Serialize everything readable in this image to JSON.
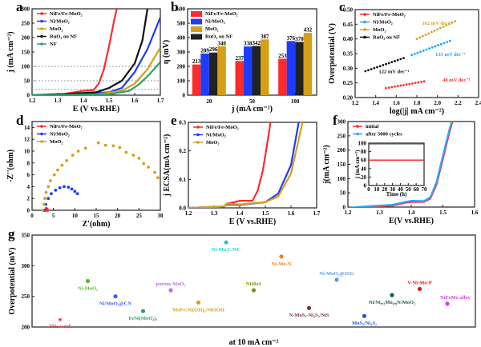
{
  "chart_data": [
    {
      "panel_label": "a",
      "type": "line",
      "xlabel": "E (V vs.RHE)",
      "ylabel": "j (mA cm⁻²)",
      "xlim": [
        1.2,
        1.7
      ],
      "ylim": [
        0,
        300
      ],
      "xticks": [
        "1.2",
        "1.3",
        "1.4",
        "1.5",
        "1.6",
        "1.7"
      ],
      "yticks": [
        "0",
        "50",
        "100",
        "150",
        "200",
        "250",
        "300"
      ],
      "ref_lines": [
        20,
        50,
        100
      ],
      "series": [
        {
          "name": "NiFe/Fe-MoO₂",
          "color": "#ff2a2a",
          "x": [
            1.2,
            1.3,
            1.35,
            1.4,
            1.44,
            1.46,
            1.48,
            1.5,
            1.52,
            1.53
          ],
          "y": [
            -5,
            0,
            8,
            15,
            18,
            40,
            90,
            170,
            260,
            300
          ]
        },
        {
          "name": "Ni/MoO₂",
          "color": "#1e3cff",
          "x": [
            1.2,
            1.4,
            1.5,
            1.55,
            1.6,
            1.65,
            1.7
          ],
          "y": [
            0,
            5,
            10,
            25,
            80,
            160,
            270
          ]
        },
        {
          "name": "MoO₂",
          "color": "#d4a017",
          "x": [
            1.2,
            1.45,
            1.55,
            1.6,
            1.65,
            1.7
          ],
          "y": [
            0,
            3,
            15,
            40,
            90,
            165
          ]
        },
        {
          "name": "RuO₂ on NF",
          "color": "#111111",
          "x": [
            1.2,
            1.35,
            1.45,
            1.5,
            1.55,
            1.6,
            1.63,
            1.65
          ],
          "y": [
            0,
            5,
            10,
            25,
            50,
            110,
            190,
            300
          ]
        },
        {
          "name": "NF",
          "color": "#2aa36b",
          "x": [
            1.2,
            1.5,
            1.58,
            1.62,
            1.66,
            1.7
          ],
          "y": [
            0,
            3,
            15,
            40,
            75,
            115
          ]
        }
      ]
    },
    {
      "panel_label": "b",
      "type": "bar",
      "xlabel": "j (mA cm⁻²)",
      "ylabel": "η (mV)",
      "ylim": [
        0,
        600
      ],
      "yticks": [
        "0",
        "100",
        "200",
        "300",
        "400",
        "500",
        "600"
      ],
      "categories": [
        "20",
        "50",
        "100"
      ],
      "series": [
        {
          "name": "NiFe/Fe-MoO₂",
          "color": "#ff2a2a",
          "values": [
            "213",
            "237",
            "253"
          ]
        },
        {
          "name": "Ni/MoO₂",
          "color": "#1e3cff",
          "values": [
            "289",
            "338",
            "376"
          ]
        },
        {
          "name": "RuO₂ on NF",
          "color": "#222222",
          "values": [
            "296",
            "342",
            "370"
          ]
        },
        {
          "name": "MoO₂",
          "color": "#d4a017",
          "values": [
            "340",
            "387",
            "432"
          ]
        }
      ],
      "legend_order": [
        0,
        1,
        3,
        2
      ]
    },
    {
      "panel_label": "c",
      "type": "scatter",
      "xlabel": "log(|j| mA cm⁻²)",
      "ylabel": "Overpotential (V)",
      "xlim": [
        1.2,
        2.4
      ],
      "ylim": [
        0.2,
        0.5
      ],
      "xticks": [
        "1.2",
        "1.4",
        "1.6",
        "1.8",
        "2.0",
        "2.2",
        "2.4"
      ],
      "yticks": [
        "0.20",
        "0.25",
        "0.30",
        "0.35",
        "0.40",
        "0.45",
        "0.50"
      ],
      "series": [
        {
          "name": "NiFe/Fe-MoO₂",
          "color": "#ff2a2a",
          "x": [
            1.5,
            1.9
          ],
          "y": [
            0.232,
            0.257
          ],
          "slope": "48 mV dec⁻¹",
          "slope_at": [
            2.05,
            0.255
          ]
        },
        {
          "name": "Ni/MoO₂",
          "color": "#1aa3ff",
          "x": [
            1.75,
            2.15
          ],
          "y": [
            0.345,
            0.397
          ],
          "slope": "135 mV dec⁻¹",
          "slope_at": [
            1.98,
            0.342
          ]
        },
        {
          "name": "MoO₂",
          "color": "#d4a017",
          "x": [
            1.8,
            2.2
          ],
          "y": [
            0.4,
            0.465
          ],
          "slope": "162 mV dec⁻¹",
          "slope_at": [
            1.85,
            0.448
          ]
        },
        {
          "name": "RuO₂ on NF",
          "color": "#111111",
          "x": [
            1.3,
            1.7
          ],
          "y": [
            0.29,
            0.338
          ],
          "slope": "122 mV dec⁻¹",
          "slope_at": [
            1.43,
            0.283
          ]
        }
      ]
    },
    {
      "panel_label": "d",
      "type": "scatter",
      "xlabel": "Z'(ohm)",
      "ylabel": "-Z''(ohm)",
      "xlim": [
        0,
        30
      ],
      "ylim": [
        0,
        15
      ],
      "xticks": [
        "0",
        "5",
        "10",
        "15",
        "20",
        "25",
        "30"
      ],
      "yticks": [
        "0",
        "2",
        "4",
        "6",
        "8",
        "10",
        "12",
        "14"
      ],
      "series": [
        {
          "name": "NiFe/Fe-MoO₂",
          "color": "#ff2a2a",
          "x": [
            3.1,
            3.3,
            3.5,
            3.6
          ],
          "y": [
            0,
            0.3,
            0.2,
            0
          ]
        },
        {
          "name": "Ni/MoO₂",
          "color": "#1e3cff",
          "x": [
            2.8,
            3.2,
            3.8,
            4.5,
            5.5,
            6.5,
            7.5,
            8.5,
            9.3,
            10,
            10.6
          ],
          "y": [
            0,
            1,
            2,
            2.8,
            3.4,
            3.8,
            4,
            3.9,
            3.6,
            3.2,
            2.8
          ]
        },
        {
          "name": "MoO₂",
          "color": "#d4a017",
          "x": [
            2.5,
            2.8,
            3.0,
            3.3,
            3.8,
            4.3,
            5.2,
            6,
            7,
            8.1,
            9.5,
            10.8,
            12.5,
            15.5,
            17.2,
            19,
            20.5,
            22,
            23.7,
            25,
            26.1,
            27.2,
            28.7,
            29.4
          ],
          "y": [
            0,
            1,
            2,
            3,
            4,
            5,
            6,
            6.8,
            7.6,
            8.4,
            9.3,
            10,
            10.5,
            11.4,
            11,
            10.9,
            10.6,
            9.8,
            9.3,
            8.8,
            7.9,
            7.3,
            6.4,
            5.5
          ]
        }
      ]
    },
    {
      "panel_label": "e",
      "type": "line",
      "xlabel": "E (V vs.RHE)",
      "ylabel": "j ECSA(mA cm⁻²)",
      "xlim": [
        1.2,
        1.7
      ],
      "ylim": [
        0,
        0.3
      ],
      "xticks": [
        "1.2",
        "1.3",
        "1.4",
        "1.5",
        "1.6",
        "1.7"
      ],
      "yticks": [
        "0.0",
        "0.1",
        "0.2",
        "0.3"
      ],
      "series": [
        {
          "name": "NiFe/Fe-MoO₂",
          "color": "#ff2a2a",
          "x": [
            1.2,
            1.34,
            1.35,
            1.38,
            1.4,
            1.45,
            1.47,
            1.49,
            1.51,
            1.52
          ],
          "y": [
            -0.005,
            0.005,
            0.015,
            0.02,
            0.025,
            0.025,
            0.06,
            0.13,
            0.24,
            0.3
          ]
        },
        {
          "name": "Ni/MoO₂",
          "color": "#1e3cff",
          "x": [
            1.2,
            1.34,
            1.35,
            1.4,
            1.5,
            1.55,
            1.6,
            1.63
          ],
          "y": [
            0,
            0.005,
            0.012,
            0.01,
            0.02,
            0.05,
            0.15,
            0.3
          ]
        },
        {
          "name": "MoO₂",
          "color": "#d4a017",
          "x": [
            1.2,
            1.34,
            1.35,
            1.4,
            1.5,
            1.55,
            1.6,
            1.645
          ],
          "y": [
            0,
            0.005,
            0.015,
            0.012,
            0.02,
            0.04,
            0.12,
            0.3
          ]
        }
      ]
    },
    {
      "panel_label": "f",
      "type": "line",
      "xlabel": "E(V vs.RHE)",
      "ylabel": "j(mA cm⁻²)",
      "xlim": [
        1.2,
        1.6
      ],
      "ylim": [
        0,
        300
      ],
      "xticks": [
        "1.2",
        "1.3",
        "1.4",
        "1.5",
        "1.6"
      ],
      "yticks": [
        "0",
        "50",
        "100",
        "150",
        "200",
        "250",
        "300"
      ],
      "series": [
        {
          "name": "initial",
          "color": "#ff2a2a",
          "x": [
            1.2,
            1.25,
            1.34,
            1.38,
            1.4,
            1.44,
            1.46,
            1.48,
            1.5,
            1.52,
            1.53
          ],
          "y": [
            -5,
            0,
            5,
            15,
            18,
            18,
            30,
            80,
            170,
            260,
            300
          ]
        },
        {
          "name": "after 5000 cycles",
          "color": "#2aa7ff",
          "x": [
            1.2,
            1.25,
            1.34,
            1.38,
            1.4,
            1.44,
            1.46,
            1.48,
            1.5,
            1.52,
            1.528
          ],
          "y": [
            -3,
            2,
            8,
            18,
            22,
            21,
            34,
            88,
            180,
            270,
            300
          ]
        }
      ],
      "inset": {
        "xlabel": "Time (h)",
        "ylabel": "j (mA cm⁻²)",
        "xlim": [
          0,
          70
        ],
        "ylim": [
          0,
          100
        ],
        "xticks": [
          "0",
          "10",
          "20",
          "30",
          "40",
          "50",
          "60",
          "70"
        ],
        "yticks": [
          "0",
          "20",
          "40",
          "60",
          "80",
          "100"
        ],
        "x": [
          0,
          70
        ],
        "y": [
          60,
          60
        ],
        "color": "#ff2a2a"
      }
    },
    {
      "panel_label": "g",
      "type": "scatter",
      "xlabel": "at 10 mA cm⁻²",
      "ylabel": "Overpotential (mV)",
      "ylim": [
        200,
        350
      ],
      "yticks": [
        "200",
        "250",
        "300",
        "350"
      ],
      "points": [
        {
          "label": "This work",
          "value": 213,
          "color": "#ff3344",
          "marker": "star"
        },
        {
          "label": "Ni-MoO₂",
          "value": 275,
          "color": "#5ab82a"
        },
        {
          "label": "Ni/MoO₂@CN",
          "value": 250,
          "color": "#3a5cf0"
        },
        {
          "label": "FeNi(MoO₄)ₓ",
          "value": 226,
          "color": "#2aa060"
        },
        {
          "label": "porous MoO₂",
          "value": 260,
          "color": "#b070e0"
        },
        {
          "label": "MoFe:Ni(OH)₂/NiOOH",
          "value": 240,
          "color": "#d4a017"
        },
        {
          "label": "Ni-Mo₂C/NC",
          "value": 338,
          "color": "#20c8c8"
        },
        {
          "label": "NiMoS",
          "value": 260,
          "color": "#8a8a10"
        },
        {
          "label": "Ni-Mo-N",
          "value": 315,
          "color": "#f08020"
        },
        {
          "label": "N-MoS₂-Ni₃S₂/NiS",
          "value": 231,
          "color": "#703838"
        },
        {
          "label": "Ni-MoO₂@SSG",
          "value": 277,
          "color": "#5a9ad8"
        },
        {
          "label": "MoS₂/Ni₃S₂",
          "value": 218,
          "color": "#1a5ae0"
        },
        {
          "label": "Ni/Ni₀.₂Mo₀.₈N/MoO₂",
          "value": 252,
          "color": "#106050"
        },
        {
          "label": "V-Ni-Mo-P",
          "value": 262,
          "color": "#d81818"
        },
        {
          "label": "NiFeMo alloy",
          "value": 238,
          "color": "#d040e0"
        }
      ]
    }
  ]
}
